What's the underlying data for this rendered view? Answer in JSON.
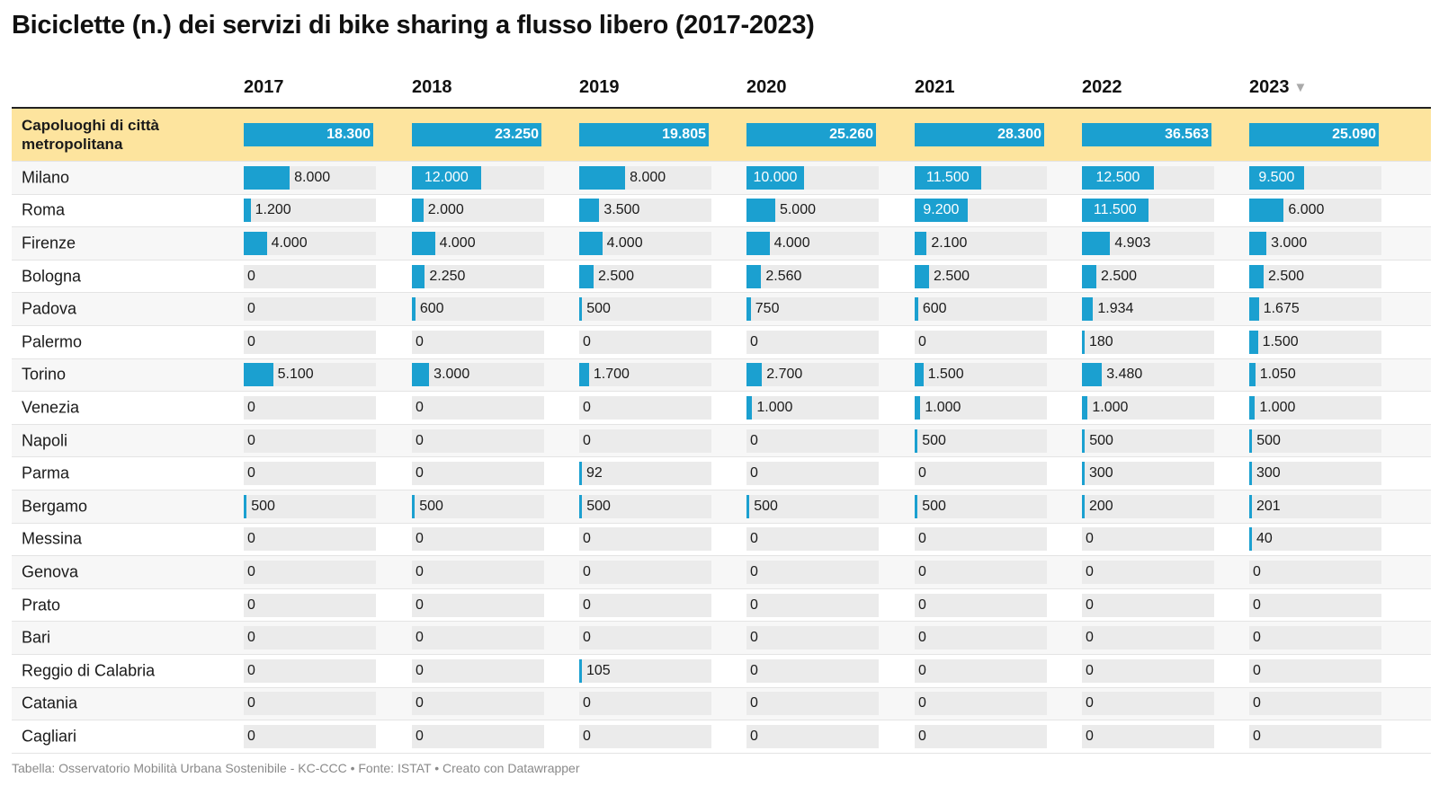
{
  "title": "Biciclette (n.) dei servizi di bike sharing a flusso libero (2017-2023)",
  "footer": "Tabella: Osservatorio Mobilità Urbana Sostenibile - KC-CCC • Fonte: ISTAT • Creato con Datawrapper",
  "sort_indicator": "▼",
  "colors": {
    "bar": "#1ba0d0",
    "track": "#ebebeb",
    "highlight": "#fde49e"
  },
  "chart_data": {
    "type": "table",
    "years": [
      "2017",
      "2018",
      "2019",
      "2020",
      "2021",
      "2022",
      "2023"
    ],
    "total": {
      "name": "Capoluoghi di città metropolitana",
      "labels": [
        "18.300",
        "23.250",
        "19.805",
        "25.260",
        "28.300",
        "36.563",
        "25.090"
      ],
      "values": [
        18300,
        23250,
        19805,
        25260,
        28300,
        36563,
        25090
      ]
    },
    "bar_max": 23000,
    "rows": [
      {
        "name": "Milano",
        "labels": [
          "8.000",
          "12.000",
          "8.000",
          "10.000",
          "11.500",
          "12.500",
          "9.500"
        ],
        "values": [
          8000,
          12000,
          8000,
          10000,
          11500,
          12500,
          9500
        ]
      },
      {
        "name": "Roma",
        "labels": [
          "1.200",
          "2.000",
          "3.500",
          "5.000",
          "9.200",
          "11.500",
          "6.000"
        ],
        "values": [
          1200,
          2000,
          3500,
          5000,
          9200,
          11500,
          6000
        ]
      },
      {
        "name": "Firenze",
        "labels": [
          "4.000",
          "4.000",
          "4.000",
          "4.000",
          "2.100",
          "4.903",
          "3.000"
        ],
        "values": [
          4000,
          4000,
          4000,
          4000,
          2100,
          4903,
          3000
        ]
      },
      {
        "name": "Bologna",
        "labels": [
          "0",
          "2.250",
          "2.500",
          "2.560",
          "2.500",
          "2.500",
          "2.500"
        ],
        "values": [
          0,
          2250,
          2500,
          2560,
          2500,
          2500,
          2500
        ]
      },
      {
        "name": "Padova",
        "labels": [
          "0",
          "600",
          "500",
          "750",
          "600",
          "1.934",
          "1.675"
        ],
        "values": [
          0,
          600,
          500,
          750,
          600,
          1934,
          1675
        ]
      },
      {
        "name": "Palermo",
        "labels": [
          "0",
          "0",
          "0",
          "0",
          "0",
          "180",
          "1.500"
        ],
        "values": [
          0,
          0,
          0,
          0,
          0,
          180,
          1500
        ]
      },
      {
        "name": "Torino",
        "labels": [
          "5.100",
          "3.000",
          "1.700",
          "2.700",
          "1.500",
          "3.480",
          "1.050"
        ],
        "values": [
          5100,
          3000,
          1700,
          2700,
          1500,
          3480,
          1050
        ]
      },
      {
        "name": "Venezia",
        "labels": [
          "0",
          "0",
          "0",
          "1.000",
          "1.000",
          "1.000",
          "1.000"
        ],
        "values": [
          0,
          0,
          0,
          1000,
          1000,
          1000,
          1000
        ]
      },
      {
        "name": "Napoli",
        "labels": [
          "0",
          "0",
          "0",
          "0",
          "500",
          "500",
          "500"
        ],
        "values": [
          0,
          0,
          0,
          0,
          500,
          500,
          500
        ]
      },
      {
        "name": "Parma",
        "labels": [
          "0",
          "0",
          "92",
          "0",
          "0",
          "300",
          "300"
        ],
        "values": [
          0,
          0,
          92,
          0,
          0,
          300,
          300
        ]
      },
      {
        "name": "Bergamo",
        "labels": [
          "500",
          "500",
          "500",
          "500",
          "500",
          "200",
          "201"
        ],
        "values": [
          500,
          500,
          500,
          500,
          500,
          200,
          201
        ]
      },
      {
        "name": "Messina",
        "labels": [
          "0",
          "0",
          "0",
          "0",
          "0",
          "0",
          "40"
        ],
        "values": [
          0,
          0,
          0,
          0,
          0,
          0,
          40
        ]
      },
      {
        "name": "Genova",
        "labels": [
          "0",
          "0",
          "0",
          "0",
          "0",
          "0",
          "0"
        ],
        "values": [
          0,
          0,
          0,
          0,
          0,
          0,
          0
        ]
      },
      {
        "name": "Prato",
        "labels": [
          "0",
          "0",
          "0",
          "0",
          "0",
          "0",
          "0"
        ],
        "values": [
          0,
          0,
          0,
          0,
          0,
          0,
          0
        ]
      },
      {
        "name": "Bari",
        "labels": [
          "0",
          "0",
          "0",
          "0",
          "0",
          "0",
          "0"
        ],
        "values": [
          0,
          0,
          0,
          0,
          0,
          0,
          0
        ]
      },
      {
        "name": "Reggio di Calabria",
        "labels": [
          "0",
          "0",
          "105",
          "0",
          "0",
          "0",
          "0"
        ],
        "values": [
          0,
          0,
          105,
          0,
          0,
          0,
          0
        ]
      },
      {
        "name": "Catania",
        "labels": [
          "0",
          "0",
          "0",
          "0",
          "0",
          "0",
          "0"
        ],
        "values": [
          0,
          0,
          0,
          0,
          0,
          0,
          0
        ]
      },
      {
        "name": "Cagliari",
        "labels": [
          "0",
          "0",
          "0",
          "0",
          "0",
          "0",
          "0"
        ],
        "values": [
          0,
          0,
          0,
          0,
          0,
          0,
          0
        ]
      }
    ]
  }
}
